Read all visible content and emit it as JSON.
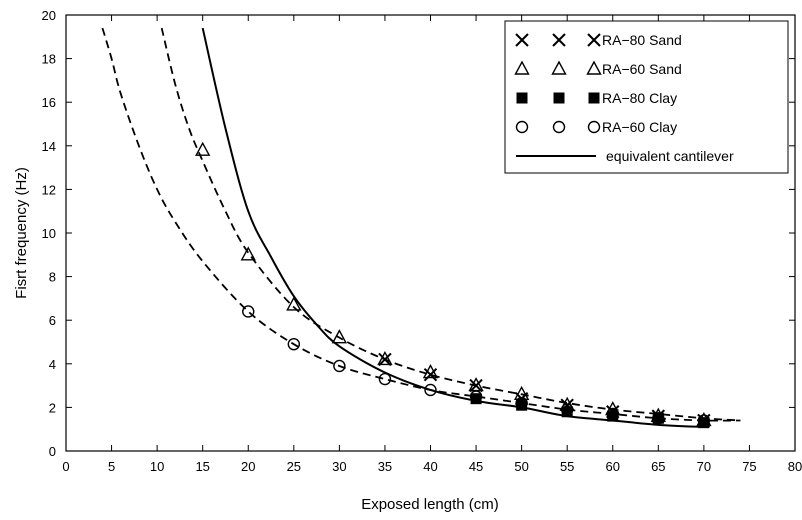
{
  "chart_data": {
    "type": "scatter",
    "xlabel": "Exposed length (cm)",
    "ylabel": "Fisrt frequency (Hz)",
    "xlim": [
      0,
      80
    ],
    "ylim": [
      0,
      20
    ],
    "xticks": [
      0,
      5,
      10,
      15,
      20,
      25,
      30,
      35,
      40,
      45,
      50,
      55,
      60,
      65,
      70,
      75,
      80
    ],
    "yticks": [
      0,
      2,
      4,
      6,
      8,
      10,
      12,
      14,
      16,
      18,
      20
    ],
    "grid": false,
    "legend_position": "top-right",
    "series": [
      {
        "name": "RA−80 Sand",
        "marker": "x",
        "x": [
          35,
          40,
          45,
          50,
          55,
          60,
          65,
          70
        ],
        "y": [
          4.2,
          3.5,
          3.0,
          2.4,
          2.1,
          1.8,
          1.6,
          1.4
        ]
      },
      {
        "name": "RA−60 Sand",
        "marker": "triangle-open",
        "x": [
          15,
          20,
          25,
          30,
          35,
          40,
          45,
          50,
          55,
          60,
          65,
          70
        ],
        "y": [
          13.8,
          9.0,
          6.7,
          5.2,
          4.2,
          3.6,
          3.0,
          2.6,
          2.1,
          1.9,
          1.6,
          1.4
        ]
      },
      {
        "name": "RA−80 Clay",
        "marker": "square-filled",
        "x": [
          45,
          50,
          55,
          60,
          65,
          70
        ],
        "y": [
          2.4,
          2.1,
          1.8,
          1.6,
          1.5,
          1.3
        ]
      },
      {
        "name": "RA−60 Clay",
        "marker": "circle-open",
        "x": [
          20,
          25,
          30,
          35,
          40,
          45,
          50,
          55,
          60,
          65,
          70
        ],
        "y": [
          6.4,
          4.9,
          3.9,
          3.3,
          2.8,
          2.5,
          2.2,
          1.9,
          1.7,
          1.5,
          1.4
        ]
      },
      {
        "name": "equivalent cantilever",
        "style": "solid",
        "x": [
          15,
          17.5,
          20,
          22.5,
          25,
          27.5,
          30,
          35,
          40,
          45,
          50,
          55,
          60,
          65,
          70
        ],
        "y": [
          19.4,
          14.8,
          11.0,
          8.9,
          7.1,
          5.8,
          4.8,
          3.6,
          2.8,
          2.3,
          2.0,
          1.6,
          1.4,
          1.2,
          1.1
        ]
      },
      {
        "style": "dashed",
        "x": [
          10.5,
          12,
          13.5,
          15,
          17.5,
          20,
          25,
          30,
          35,
          40,
          45,
          50,
          55,
          60,
          65,
          70,
          74
        ],
        "y": [
          19.4,
          16.8,
          14.8,
          13.3,
          11.0,
          9.1,
          6.6,
          5.2,
          4.2,
          3.5,
          3.0,
          2.6,
          2.2,
          1.9,
          1.7,
          1.5,
          1.4
        ]
      },
      {
        "style": "dashed",
        "x": [
          4,
          5,
          6,
          8,
          10,
          12,
          15,
          20,
          25,
          30,
          35,
          40,
          45,
          50,
          55,
          60,
          65,
          70,
          74
        ],
        "y": [
          19.4,
          18.0,
          16.4,
          14.0,
          12.0,
          10.5,
          8.7,
          6.4,
          4.9,
          3.9,
          3.3,
          2.8,
          2.5,
          2.2,
          1.9,
          1.7,
          1.5,
          1.4,
          1.4
        ]
      }
    ]
  }
}
